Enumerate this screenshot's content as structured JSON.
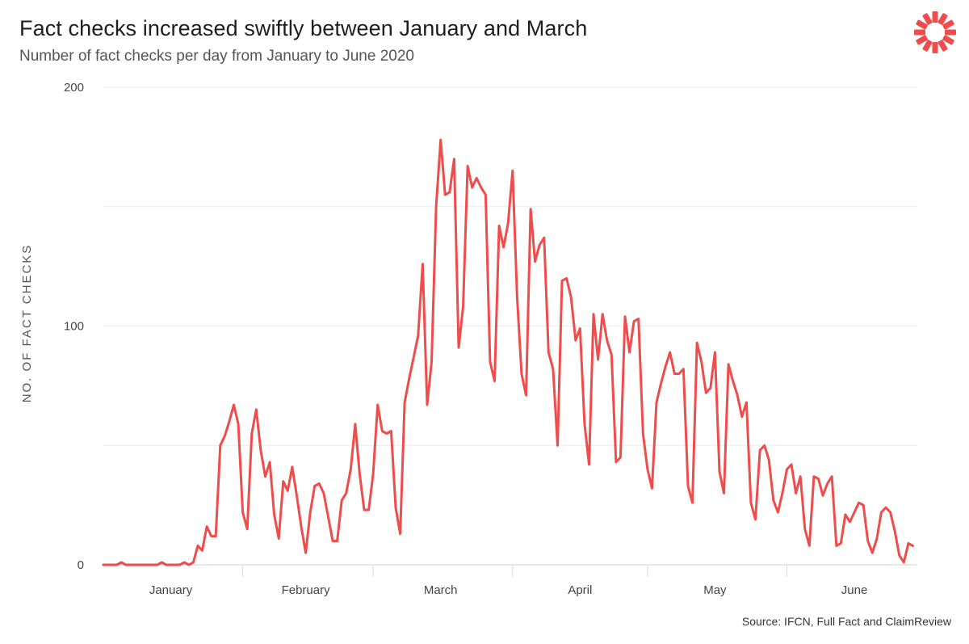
{
  "header": {
    "title": "Fact checks increased swiftly between January and March",
    "subtitle": "Number of fact checks per day from January to June 2020"
  },
  "footer": {
    "source": "Source: IFCN, Full Fact and ClaimReview"
  },
  "logo": {
    "icon": "starburst-logo-icon",
    "color": "#ef4c4c"
  },
  "chart_data": {
    "type": "line",
    "title": "Fact checks increased swiftly between January and March",
    "subtitle": "Number of fact checks per day from January to June 2020",
    "xlabel": "",
    "ylabel": "NO. OF FACT CHECKS",
    "ylim": [
      0,
      200
    ],
    "ytick_labels": [
      {
        "value": 0,
        "label": "0"
      },
      {
        "value": 100,
        "label": "100"
      },
      {
        "value": 200,
        "label": "200"
      }
    ],
    "gridlines_at": [
      0,
      50,
      100,
      150,
      200
    ],
    "grid": true,
    "x_unit": "day of 2020 (1 = 1 January)",
    "xlim": [
      1,
      182
    ],
    "month_labels": [
      {
        "label": "January",
        "day": 16
      },
      {
        "label": "February",
        "day": 46
      },
      {
        "label": "March",
        "day": 76
      },
      {
        "label": "April",
        "day": 107
      },
      {
        "label": "May",
        "day": 137
      },
      {
        "label": "June",
        "day": 168
      }
    ],
    "month_boundaries": [
      32,
      61,
      92,
      122,
      153
    ],
    "line_color": "#ef4c4c",
    "series": [
      {
        "values": [
          0,
          0,
          0,
          0,
          1,
          0,
          0,
          0,
          0,
          0,
          0,
          0,
          0,
          1,
          0,
          0,
          0,
          0,
          1,
          0,
          1,
          8,
          6,
          16,
          12,
          12,
          50,
          54,
          60,
          67,
          59,
          22,
          15,
          55,
          65,
          48,
          37,
          43,
          21,
          11,
          35,
          31,
          41,
          29,
          16,
          5,
          22,
          33,
          34,
          30,
          20,
          10,
          10,
          27,
          30,
          40,
          59,
          38,
          23,
          23,
          38,
          67,
          56,
          55,
          56,
          24,
          13,
          68,
          78,
          87,
          96,
          126,
          67,
          85,
          150,
          178,
          155,
          156,
          170,
          91,
          108,
          167,
          158,
          162,
          158,
          155,
          85,
          77,
          142,
          133,
          143,
          165,
          112,
          80,
          71,
          149,
          127,
          134,
          137,
          89,
          82,
          50,
          119,
          120,
          112,
          94,
          99,
          59,
          42,
          105,
          86,
          105,
          94,
          88,
          43,
          45,
          104,
          89,
          102,
          103,
          55,
          40,
          32,
          68,
          76,
          83,
          89,
          80,
          80,
          82,
          33,
          26,
          93,
          85,
          72,
          74,
          89,
          39,
          30,
          84,
          77,
          71,
          62,
          68,
          26,
          19,
          48,
          50,
          44,
          27,
          22,
          30,
          40,
          42,
          30,
          37,
          15,
          8,
          37,
          36,
          29,
          34,
          37,
          8,
          9,
          21,
          18,
          22,
          26,
          25,
          10,
          5,
          11,
          22,
          24,
          22,
          14,
          4,
          1,
          9,
          8
        ]
      }
    ]
  }
}
